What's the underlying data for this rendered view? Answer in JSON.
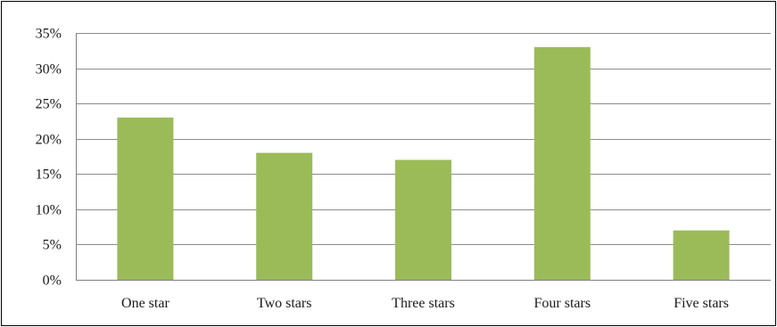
{
  "chart_data": {
    "type": "bar",
    "categories": [
      "One star",
      "Two stars",
      "Three stars",
      "Four stars",
      "Five stars"
    ],
    "values": [
      23,
      18,
      17,
      33,
      7
    ],
    "value_format": "percent",
    "title": "",
    "xlabel": "",
    "ylabel": "",
    "ylim": [
      0,
      35
    ],
    "yticks": [
      0,
      5,
      10,
      15,
      20,
      25,
      30,
      35
    ],
    "ytick_labels": [
      "0%",
      "5%",
      "10%",
      "15%",
      "20%",
      "25%",
      "30%",
      "35%"
    ],
    "grid": "horizontal",
    "legend": "none",
    "bar_color": "#9bbb59",
    "gridline_color": "#8c8c8c",
    "axis_color": "#7f7f7f"
  }
}
